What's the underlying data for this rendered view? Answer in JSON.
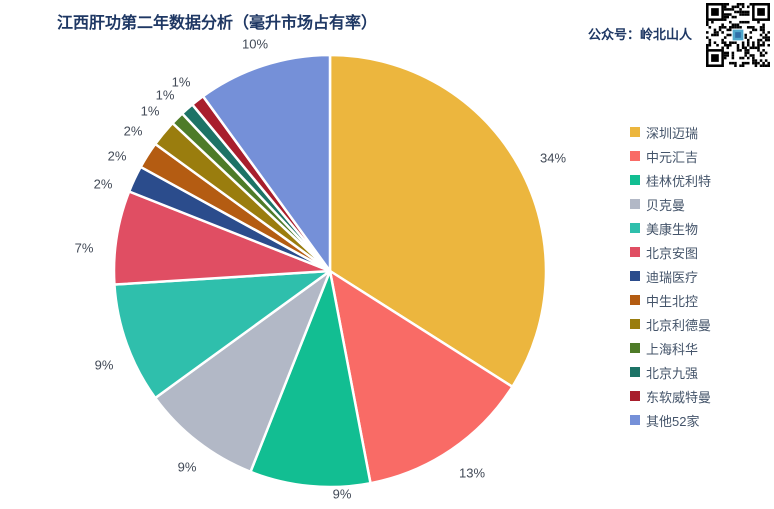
{
  "watermark": {
    "label": "公众号：岭北山人",
    "qr_icon": "qr-code"
  },
  "chart_data": {
    "type": "pie",
    "title": "江西肝功第二年数据分析（毫升市场占有率）",
    "legend_position": "right",
    "start_angle_deg": 0,
    "direction": "clockwise",
    "units": "percent",
    "slices": [
      {
        "label": "深圳迈瑞",
        "value": 34,
        "display": "34%",
        "color": "#ECB63E"
      },
      {
        "label": "中元汇吉",
        "value": 13,
        "display": "13%",
        "color": "#F96B66"
      },
      {
        "label": "桂林优利特",
        "value": 9,
        "display": "9%",
        "color": "#12BE92"
      },
      {
        "label": "贝克曼",
        "value": 9,
        "display": "9%",
        "color": "#B2B8C6"
      },
      {
        "label": "美康生物",
        "value": 9,
        "display": "9%",
        "color": "#2FBFAC"
      },
      {
        "label": "北京安图",
        "value": 7,
        "display": "7%",
        "color": "#E04E63"
      },
      {
        "label": "迪瑞医疗",
        "value": 2,
        "display": "2%",
        "color": "#2B4C8C"
      },
      {
        "label": "中生北控",
        "value": 2,
        "display": "2%",
        "color": "#B45C12"
      },
      {
        "label": "北京利德曼",
        "value": 2,
        "display": "2%",
        "color": "#9A7D0E"
      },
      {
        "label": "上海科华",
        "value": 1,
        "display": "1%",
        "color": "#4E7B28"
      },
      {
        "label": "北京九强",
        "value": 1,
        "display": "1%",
        "color": "#1D7366"
      },
      {
        "label": "东软威特曼",
        "value": 1,
        "display": "1%",
        "color": "#A81E2C"
      },
      {
        "label": "其他52家",
        "value": 10,
        "display": "10%",
        "color": "#7590D8"
      }
    ]
  },
  "style": {
    "title_color": "#1F3864",
    "label_color": "#424A57",
    "legend_text_color": "#44546A",
    "slice_border_color": "#FFFFFF"
  }
}
